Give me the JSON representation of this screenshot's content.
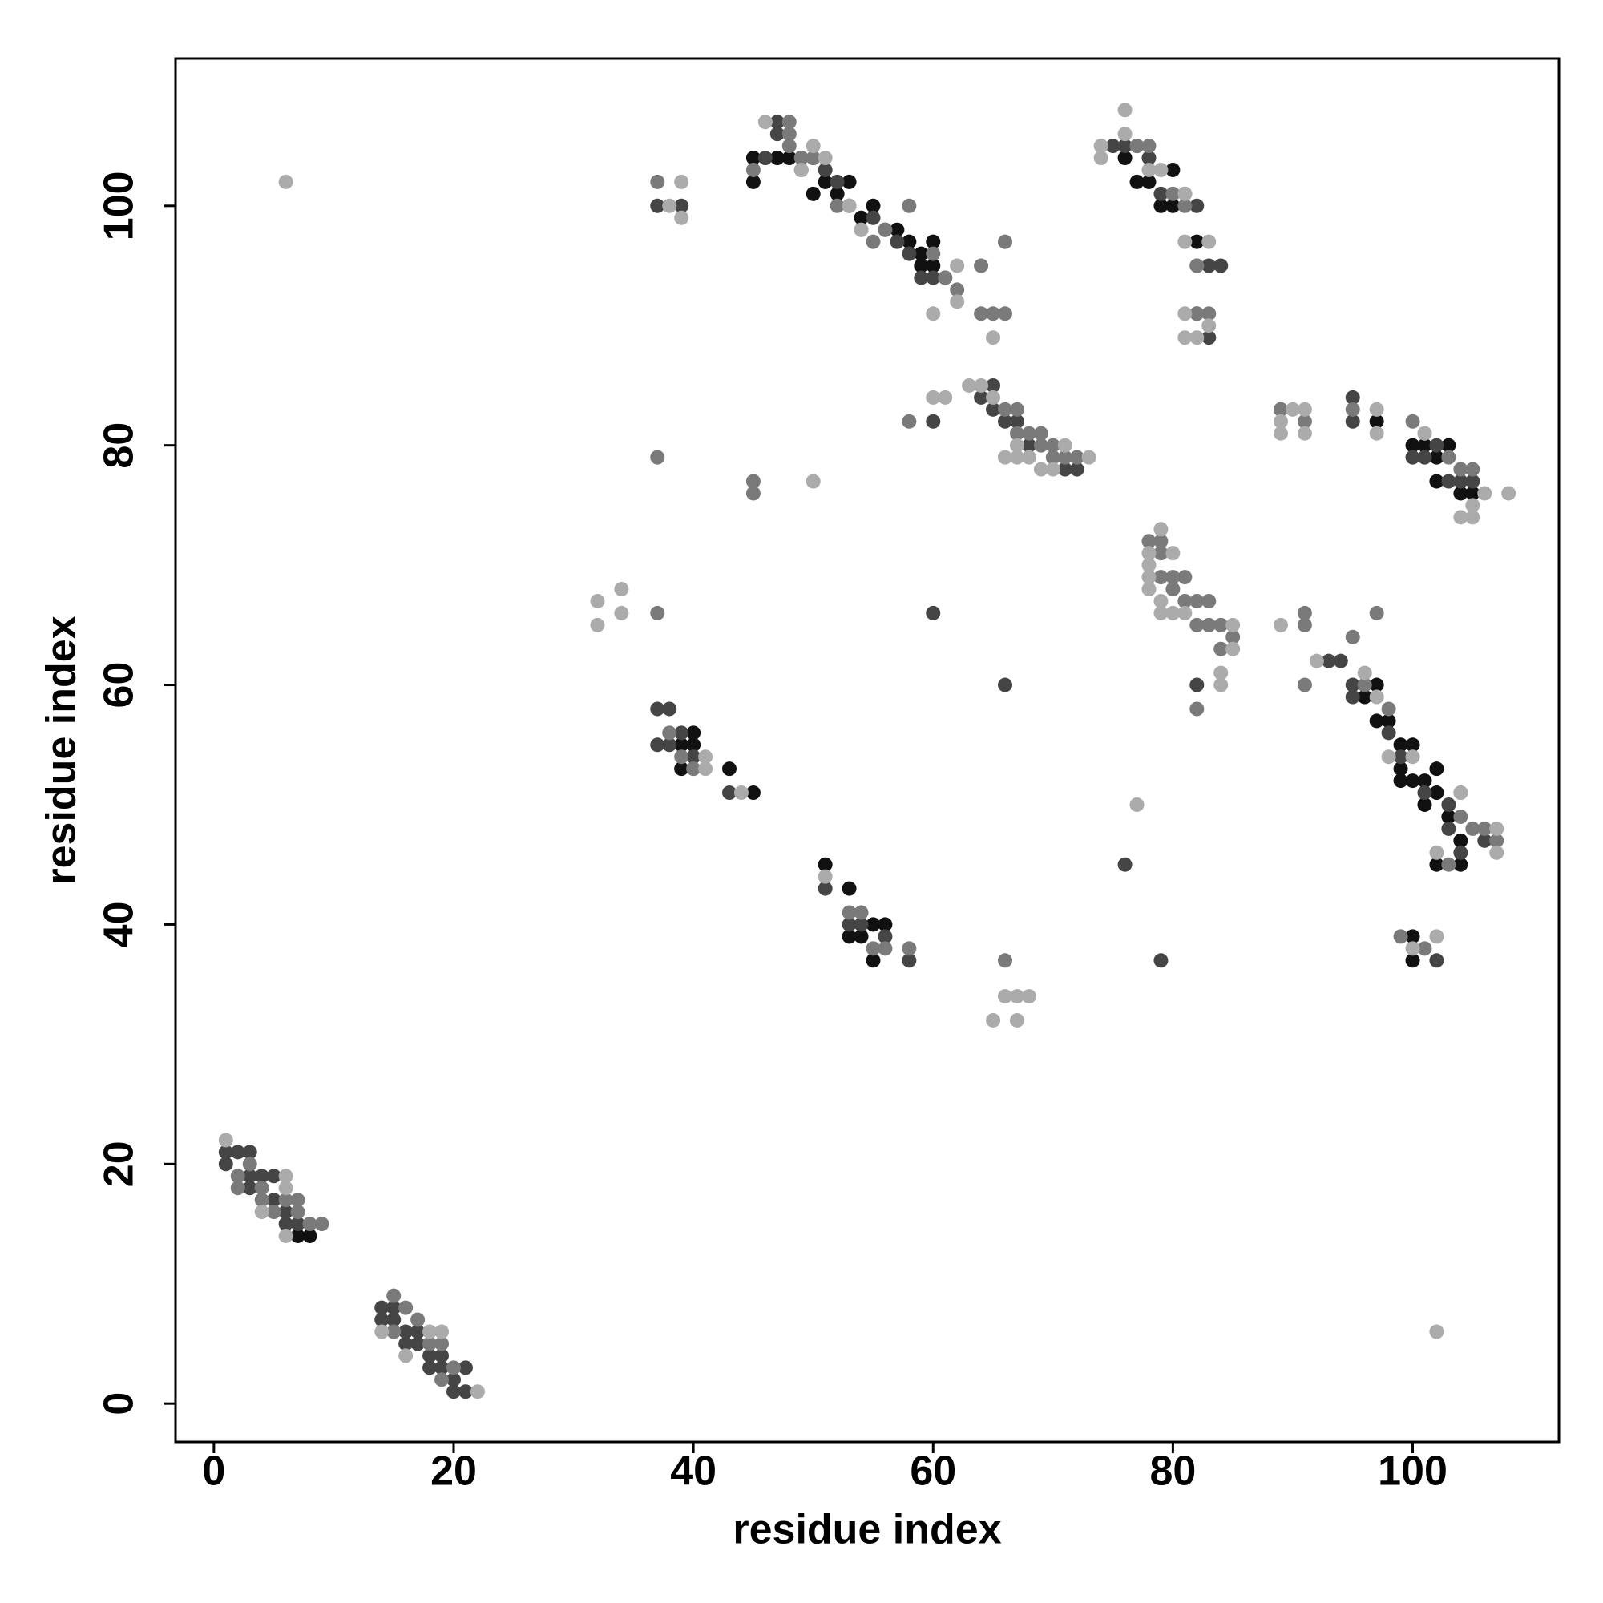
{
  "chart_data": {
    "type": "scatter",
    "x_label": "residue index",
    "y_label": "residue index",
    "xlim": [
      -3.2,
      112.2
    ],
    "ylim": [
      -3.2,
      112.3
    ],
    "xticks": [
      0,
      20,
      40,
      60,
      80,
      100
    ],
    "yticks": [
      0,
      20,
      40,
      60,
      80,
      100
    ],
    "grid": false,
    "series": [
      {
        "color": "#111111",
        "x": [
          8,
          7,
          45,
          43,
          39,
          39,
          40,
          40,
          51,
          53,
          54,
          55,
          56,
          55,
          53,
          45,
          45,
          47,
          48,
          50,
          51,
          52,
          53,
          54,
          55,
          56,
          57,
          58,
          59,
          60,
          60,
          59,
          77,
          78,
          79,
          80,
          80,
          82,
          77,
          76,
          97,
          100,
          101,
          102,
          102,
          103,
          104,
          105,
          97,
          96,
          97,
          98,
          99,
          100,
          99,
          99,
          101,
          101,
          102,
          102,
          103,
          104,
          104,
          102,
          100,
          100,
          100
        ],
        "y": [
          14,
          14,
          51,
          53,
          53,
          55,
          55,
          56,
          45,
          43,
          39,
          40,
          40,
          37,
          39,
          102,
          104,
          104,
          104,
          101,
          102,
          101,
          102,
          99,
          100,
          98,
          98,
          97,
          96,
          97,
          95,
          95,
          102,
          102,
          100,
          103,
          100,
          97,
          105,
          104,
          82,
          80,
          80,
          79,
          77,
          80,
          76,
          76,
          60,
          59,
          57,
          57,
          55,
          55,
          53,
          52,
          52,
          50,
          51,
          53,
          49,
          47,
          45,
          45,
          37,
          39,
          52
        ]
      },
      {
        "color": "#454545",
        "x": [
          1,
          1,
          2,
          3,
          3,
          3,
          4,
          5,
          5,
          6,
          6,
          7,
          14,
          14,
          15,
          15,
          16,
          16,
          17,
          17,
          18,
          18,
          19,
          19,
          20,
          20,
          21,
          21,
          37,
          38,
          37,
          38,
          39,
          40,
          43,
          51,
          53,
          54,
          56,
          58,
          37,
          39,
          46,
          47,
          47,
          49,
          49,
          50,
          51,
          52,
          53,
          55,
          57,
          58,
          59,
          60,
          61,
          75,
          76,
          78,
          79,
          81,
          82,
          82,
          83,
          84,
          82,
          83,
          64,
          65,
          66,
          67,
          65,
          60,
          68,
          71,
          72,
          94,
          95,
          95,
          96,
          98,
          99,
          101,
          103,
          103,
          104,
          106,
          82,
          66,
          60,
          76,
          79,
          102,
          100,
          101,
          102,
          103,
          104,
          105,
          95,
          89,
          93,
          95
        ],
        "y": [
          21,
          20,
          21,
          21,
          19,
          18,
          19,
          19,
          17,
          16,
          15,
          15,
          8,
          7,
          8,
          7,
          6,
          5,
          6,
          5,
          4,
          3,
          4,
          3,
          2,
          1,
          3,
          1,
          58,
          58,
          55,
          55,
          56,
          54,
          51,
          43,
          40,
          40,
          39,
          37,
          100,
          100,
          104,
          107,
          106,
          104,
          103,
          104,
          103,
          102,
          100,
          99,
          97,
          96,
          94,
          94,
          94,
          105,
          105,
          104,
          101,
          101,
          100,
          95,
          95,
          95,
          91,
          89,
          84,
          83,
          82,
          82,
          85,
          82,
          80,
          78,
          78,
          62,
          60,
          59,
          60,
          56,
          54,
          51,
          50,
          48,
          46,
          47,
          60,
          60,
          66,
          45,
          37,
          37,
          79,
          79,
          80,
          77,
          77,
          77,
          82,
          83,
          62,
          84
        ]
      },
      {
        "color": "#7a7a7a",
        "x": [
          2,
          2,
          3,
          4,
          4,
          5,
          6,
          7,
          7,
          8,
          9,
          15,
          15,
          16,
          17,
          18,
          19,
          19,
          20,
          37,
          37,
          37,
          38,
          40,
          39,
          53,
          54,
          55,
          56,
          58,
          45,
          45,
          48,
          48,
          48,
          49,
          50,
          52,
          54,
          55,
          56,
          58,
          60,
          61,
          62,
          64,
          64,
          65,
          66,
          66,
          66,
          67,
          67,
          68,
          69,
          69,
          70,
          70,
          71,
          72,
          77,
          78,
          80,
          81,
          82,
          82,
          83,
          79,
          78,
          79,
          79,
          80,
          80,
          81,
          81,
          82,
          82,
          83,
          83,
          84,
          84,
          85,
          82,
          89,
          91,
          91,
          91,
          91,
          95,
          97,
          95,
          96,
          98,
          100,
          101,
          103,
          104,
          105,
          104,
          104,
          105,
          106,
          107,
          103,
          99,
          101,
          66,
          58,
          45
        ],
        "y": [
          19,
          18,
          20,
          18,
          17,
          16,
          17,
          16,
          17,
          15,
          15,
          9,
          6,
          8,
          7,
          5,
          5,
          2,
          3,
          102,
          79,
          66,
          56,
          53,
          54,
          41,
          41,
          38,
          38,
          38,
          77,
          76,
          107,
          106,
          105,
          104,
          104,
          100,
          98,
          97,
          98,
          100,
          96,
          94,
          93,
          95,
          91,
          91,
          91,
          97,
          83,
          83,
          81,
          81,
          81,
          80,
          80,
          79,
          79,
          79,
          105,
          105,
          101,
          100,
          91,
          95,
          91,
          72,
          72,
          71,
          69,
          69,
          68,
          69,
          67,
          67,
          65,
          67,
          65,
          65,
          63,
          64,
          58,
          83,
          82,
          65,
          66,
          60,
          64,
          66,
          83,
          60,
          58,
          82,
          81,
          79,
          78,
          78,
          51,
          49,
          48,
          48,
          47,
          45,
          39,
          38,
          37,
          82,
          103
        ]
      },
      {
        "color": "#ababab",
        "x": [
          1,
          6,
          6,
          4,
          6,
          14,
          16,
          18,
          19,
          22,
          6,
          32,
          32,
          34,
          34,
          38,
          39,
          39,
          41,
          41,
          44,
          46,
          49,
          50,
          51,
          53,
          54,
          62,
          62,
          60,
          60,
          61,
          63,
          64,
          65,
          65,
          66,
          67,
          67,
          68,
          69,
          70,
          71,
          73,
          74,
          74,
          76,
          76,
          78,
          79,
          81,
          81,
          81,
          81,
          82,
          83,
          83,
          79,
          78,
          78,
          78,
          78,
          79,
          79,
          80,
          80,
          81,
          85,
          85,
          84,
          84,
          89,
          89,
          89,
          90,
          91,
          91,
          92,
          96,
          97,
          97,
          97,
          98,
          100,
          101,
          105,
          104,
          105,
          106,
          108,
          107,
          107,
          104,
          102,
          102,
          100,
          77,
          51,
          50,
          66,
          67,
          68,
          65,
          67,
          102
        ],
        "y": [
          22,
          19,
          18,
          16,
          14,
          6,
          4,
          6,
          6,
          1,
          102,
          67,
          65,
          68,
          66,
          100,
          102,
          99,
          53,
          54,
          51,
          107,
          103,
          105,
          104,
          100,
          98,
          95,
          92,
          91,
          84,
          84,
          85,
          85,
          84,
          89,
          79,
          79,
          80,
          79,
          78,
          78,
          80,
          79,
          105,
          104,
          108,
          106,
          103,
          103,
          101,
          97,
          91,
          89,
          89,
          97,
          90,
          73,
          71,
          70,
          69,
          68,
          67,
          66,
          71,
          66,
          66,
          65,
          63,
          61,
          60,
          81,
          82,
          65,
          83,
          83,
          81,
          62,
          61,
          59,
          83,
          81,
          54,
          54,
          81,
          74,
          74,
          75,
          76,
          76,
          48,
          46,
          51,
          46,
          39,
          38,
          50,
          44,
          77,
          34,
          34,
          34,
          32,
          32,
          6
        ]
      }
    ]
  }
}
